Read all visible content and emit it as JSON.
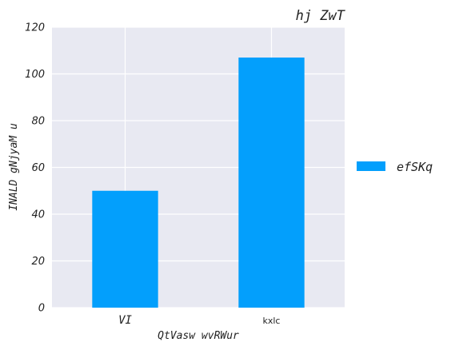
{
  "chart_data": {
    "type": "bar",
    "title": "hj ZwT",
    "xlabel": "QtVasw wvRWur",
    "ylabel": "INALD gNjyaM u",
    "categories": [
      "VI",
      "kxlc"
    ],
    "series": [
      {
        "name": "efSKq",
        "values": [
          50,
          107
        ],
        "color": "#039ffc"
      }
    ],
    "ylim": [
      0,
      120
    ],
    "yticks": [
      0,
      20,
      40,
      60,
      80,
      100,
      120
    ],
    "grid": true,
    "legend_position": "right",
    "background_color": "#e8e9f2"
  }
}
